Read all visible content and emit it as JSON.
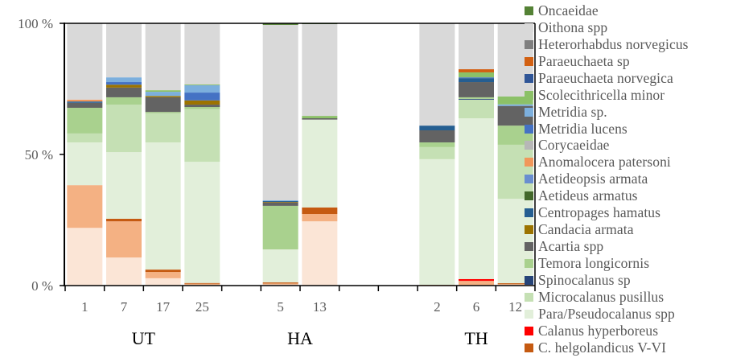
{
  "chart_data": {
    "type": "bar",
    "stacked": "percent",
    "title": "",
    "xlabel": "",
    "ylabel": "",
    "ylim": [
      0,
      100
    ],
    "yticks": [
      "0 %",
      "50 %",
      "100 %"
    ],
    "grid": false,
    "legend_placement": "right",
    "categories": [
      "1",
      "7",
      "17",
      "25",
      "",
      "5",
      "13",
      "",
      "",
      "2",
      "6",
      "12"
    ],
    "groups": [
      {
        "label": "UT",
        "categories": [
          "1",
          "7",
          "17",
          "25"
        ]
      },
      {
        "label": "HA",
        "categories": [
          "5",
          "13"
        ]
      },
      {
        "label": "TH",
        "categories": [
          "2",
          "6",
          "12"
        ]
      }
    ],
    "series": [
      {
        "name": "",
        "color": "#FBE5D6",
        "values": [
          22,
          10.7,
          2.8,
          0.3,
          null,
          0.4,
          24.5,
          null,
          null,
          0,
          0,
          0.3
        ]
      },
      {
        "name": "",
        "color": "#F4B183",
        "values": [
          16.3,
          13.8,
          2.4,
          0.4,
          null,
          0.4,
          2.8,
          null,
          null,
          0.3,
          1.8,
          0.3
        ]
      },
      {
        "name": "C. helgolandicus V-VI",
        "color": "#C55A11",
        "values": [
          0,
          1.0,
          0.9,
          0.3,
          null,
          0.4,
          2.5,
          null,
          null,
          0,
          0,
          0.3
        ]
      },
      {
        "name": "Calanus hyperboreus",
        "color": "#FF0000",
        "values": [
          0,
          0,
          0,
          0,
          null,
          0,
          0,
          null,
          null,
          0,
          0.7,
          0
        ]
      },
      {
        "name": "Para/Pseudocalanus spp",
        "color": "#E2EFDA",
        "values": [
          16.3,
          25.4,
          48.5,
          46.2,
          null,
          12.6,
          33.5,
          null,
          null,
          47.9,
          61.3,
          32.2
        ]
      },
      {
        "name": "Microcalanus pusillus",
        "color": "#C5E0B4",
        "values": [
          3.4,
          18.1,
          11.1,
          20.1,
          null,
          0,
          0,
          null,
          null,
          4.6,
          7.1,
          20.6
        ]
      },
      {
        "name": "Spinocalanus sp",
        "color": "#264478",
        "values": [
          0,
          0,
          0,
          0,
          null,
          0,
          0,
          null,
          null,
          0,
          0.3,
          0
        ]
      },
      {
        "name": "Temora longicornis",
        "color": "#A9D18E",
        "values": [
          9.8,
          2.8,
          0.5,
          0.8,
          null,
          16.6,
          0,
          null,
          null,
          1.8,
          0.6,
          7.3
        ]
      },
      {
        "name": "Acartia spp",
        "color": "#636363",
        "values": [
          1.9,
          3.7,
          5.6,
          0.9,
          null,
          1.3,
          0.5,
          null,
          null,
          4.6,
          5.8,
          7.5
        ]
      },
      {
        "name": "Candacia armata",
        "color": "#9C7300",
        "values": [
          0,
          1.1,
          0.5,
          1.6,
          null,
          0.2,
          0,
          null,
          null,
          0,
          0,
          0
        ]
      },
      {
        "name": "Centropages hamatus",
        "color": "#255E91",
        "values": [
          0.5,
          0,
          0,
          0,
          null,
          0.3,
          0,
          null,
          null,
          1.8,
          1.5,
          0
        ]
      },
      {
        "name": "Aetideus armatus",
        "color": "#43682B",
        "values": [
          0,
          0,
          0,
          0,
          null,
          0,
          0,
          null,
          null,
          0,
          0,
          0
        ]
      },
      {
        "name": "Aetideopsis armata",
        "color": "#698ED0",
        "values": [
          0,
          0,
          0,
          0,
          null,
          0,
          0,
          null,
          null,
          0,
          0,
          0
        ]
      },
      {
        "name": "Anomalocera patersoni",
        "color": "#F1975A",
        "values": [
          0.7,
          0,
          0,
          0,
          null,
          0,
          0,
          null,
          null,
          0,
          0,
          0
        ]
      },
      {
        "name": "Corycaeidae",
        "color": "#B7B7B7",
        "values": [
          0,
          0,
          0,
          0,
          null,
          0,
          0,
          null,
          null,
          0,
          0,
          0
        ]
      },
      {
        "name": "Metridia lucens",
        "color": "#4472C4",
        "values": [
          0,
          1.0,
          0,
          3.0,
          null,
          0,
          0,
          null,
          null,
          0,
          0.3,
          0
        ]
      },
      {
        "name": "Metridia sp.",
        "color": "#7CAFDD",
        "values": [
          0,
          1.8,
          1.6,
          2.8,
          null,
          0.3,
          0,
          null,
          null,
          0,
          0,
          0.6
        ]
      },
      {
        "name": "Scolecithricella minor",
        "color": "#8CC168",
        "values": [
          0,
          0,
          0.6,
          0.3,
          null,
          0,
          0.9,
          null,
          null,
          0,
          1.9,
          3.0
        ]
      },
      {
        "name": "Paraeuchaeta norvegica",
        "color": "#2F5597",
        "values": [
          0,
          0,
          0,
          0,
          null,
          0,
          0,
          null,
          null,
          0,
          0,
          0
        ]
      },
      {
        "name": "Paraeuchaeta sp",
        "color": "#D26012",
        "values": [
          0,
          0,
          0,
          0,
          null,
          0,
          0,
          null,
          null,
          0,
          1.2,
          0
        ]
      },
      {
        "name": "Heterorhabdus norvegicus",
        "color": "#7F7F7F",
        "values": [
          0,
          0,
          0,
          0,
          null,
          0,
          0,
          null,
          null,
          0,
          0,
          0
        ]
      },
      {
        "name": "Oithona spp",
        "color": "#D9D9D9",
        "values": [
          29.1,
          20.6,
          25.5,
          23.3,
          null,
          66.9,
          35.0,
          null,
          null,
          39.0,
          17.5,
          27.9
        ]
      },
      {
        "name": "Oncaeidae",
        "color": "#548235",
        "values": [
          0,
          0,
          0,
          0,
          null,
          0.6,
          0.3,
          null,
          null,
          0,
          0,
          0
        ]
      }
    ]
  }
}
